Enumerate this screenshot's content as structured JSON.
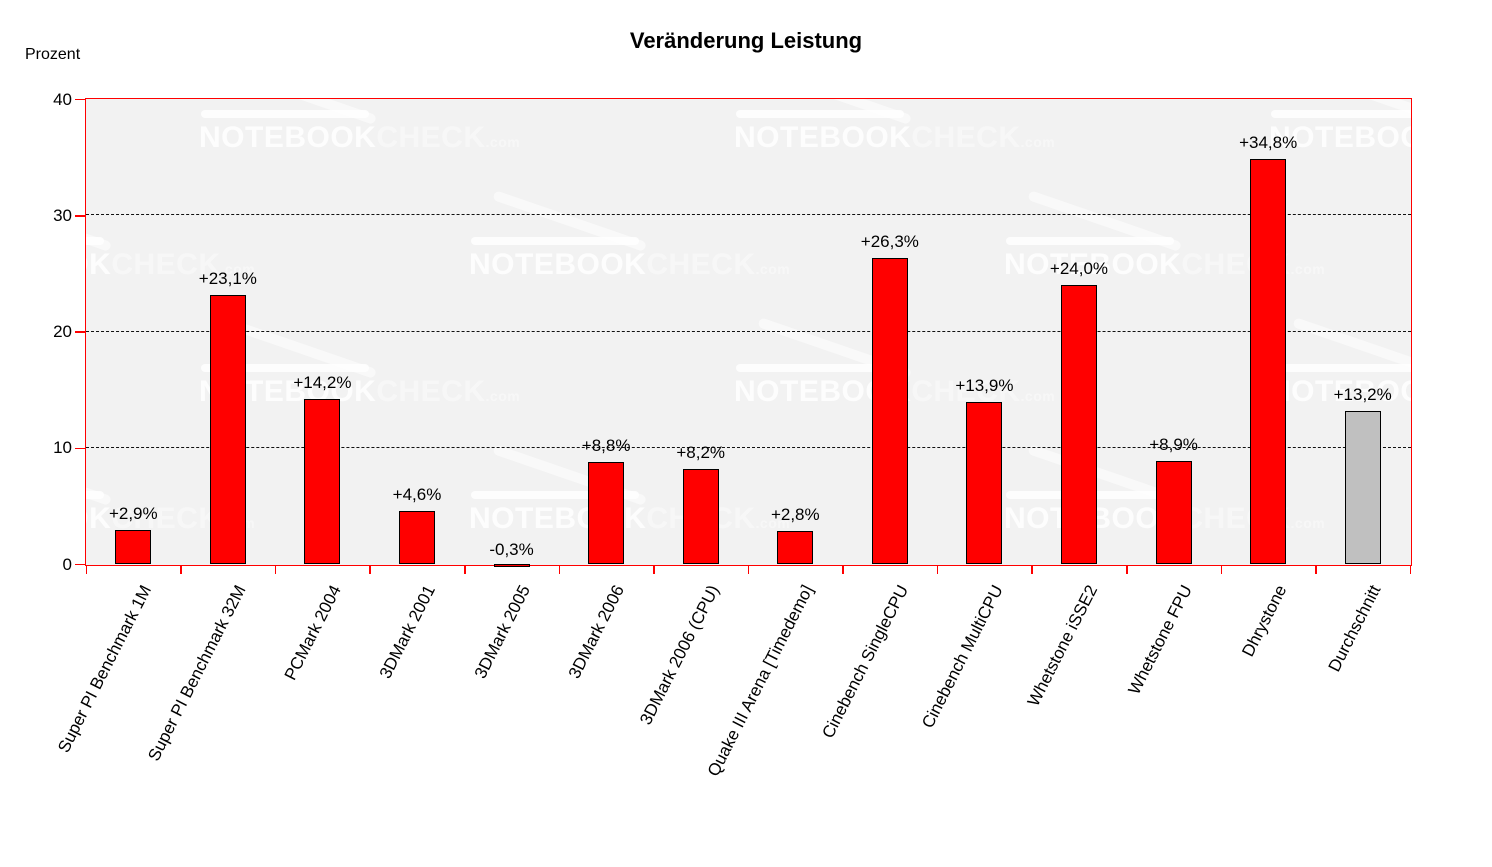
{
  "title": "Veränderung Leistung",
  "axis": {
    "unit_label": "Prozent"
  },
  "watermark": {
    "brand_primary": "NOTEBOOK",
    "brand_secondary": "CHECK",
    "brand_suffix": ".com"
  },
  "chart_data": {
    "type": "bar",
    "title": "Veränderung Leistung",
    "xlabel": "",
    "ylabel": "Prozent",
    "ylim": [
      0,
      40
    ],
    "yticks": [
      0,
      10,
      20,
      30,
      40
    ],
    "gridlines": [
      10,
      20,
      30
    ],
    "grid": "horizontal-dashed",
    "legend": "none",
    "categories": [
      "Super PI Benchmark 1M",
      "Super PI Benchmark 32M",
      "PCMark 2004",
      "3DMark 2001",
      "3DMark 2005",
      "3DMark 2006",
      "3DMark 2006 (CPU)",
      "Quake III Arena [Timedemo]",
      "Cinebench SingleCPU",
      "Cinebench MultiCPU",
      "Whetstone iSSE2",
      "Whetstone FPU",
      "Dhrystone",
      "Durchschnitt"
    ],
    "values": [
      2.9,
      23.1,
      14.2,
      4.6,
      -0.3,
      8.8,
      8.2,
      2.8,
      26.3,
      13.9,
      24.0,
      8.9,
      34.8,
      13.2
    ],
    "bar_labels": [
      "+2,9%",
      "+23,1%",
      "+14,2%",
      "+4,6%",
      "-0,3%",
      "+8,8%",
      "+8,2%",
      "+2,8%",
      "+26,3%",
      "+13,9%",
      "+24,0%",
      "+8,9%",
      "+34,8%",
      "+13,2%"
    ],
    "bar_colors": [
      "#ff0000",
      "#ff0000",
      "#ff0000",
      "#ff0000",
      "#ff0000",
      "#ff0000",
      "#ff0000",
      "#ff0000",
      "#ff0000",
      "#ff0000",
      "#ff0000",
      "#ff0000",
      "#ff0000",
      "#c0c0c0"
    ],
    "axis_color": "#ff0000",
    "plot_background": "#f2f2f2",
    "note": "Durchschnitt (average) bar drawn gray, all benchmark bars red"
  }
}
